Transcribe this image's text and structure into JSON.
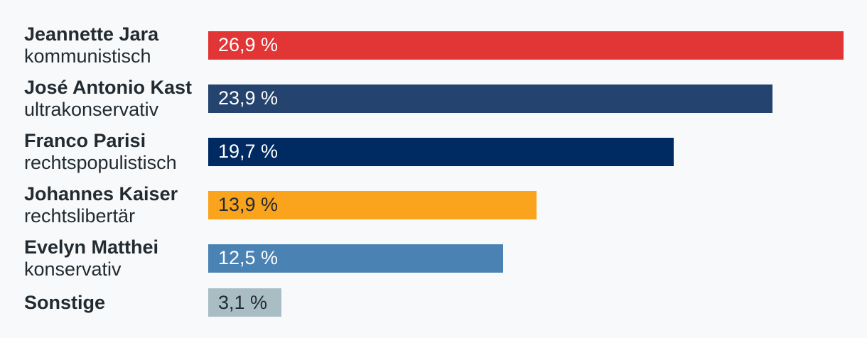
{
  "chart_data": {
    "type": "bar",
    "orientation": "horizontal",
    "unit": "%",
    "value_format": "decimal-comma",
    "xlim": [
      0,
      27
    ],
    "grid": false,
    "legend": "none",
    "categories": [
      "Jeannette Jara",
      "José Antonio Kast",
      "Franco Parisi",
      "Johannes Kaiser",
      "Evelyn Matthei",
      "Sonstige"
    ],
    "values": [
      26.9,
      23.9,
      19.7,
      13.9,
      12.5,
      3.1
    ],
    "items": [
      {
        "name": "Jeannette Jara",
        "description": "kommunistisch",
        "value": 26.9,
        "value_label": "26,9 %",
        "bar_color": "#e23535",
        "value_text_color": "#ffffff"
      },
      {
        "name": "José Antonio Kast",
        "description": "ultrakonservativ",
        "value": 23.9,
        "value_label": "23,9 %",
        "bar_color": "#24436e",
        "value_text_color": "#ffffff"
      },
      {
        "name": "Franco Parisi",
        "description": "rechtspopulistisch",
        "value": 19.7,
        "value_label": "19,7 %",
        "bar_color": "#002a62",
        "value_text_color": "#ffffff"
      },
      {
        "name": "Johannes Kaiser",
        "description": "rechtslibertär",
        "value": 13.9,
        "value_label": "13,9 %",
        "bar_color": "#faa31c",
        "value_text_color": "#222b31"
      },
      {
        "name": "Evelyn Matthei",
        "description": "konservativ",
        "value": 12.5,
        "value_label": "12,5 %",
        "bar_color": "#4a82b4",
        "value_text_color": "#ffffff"
      },
      {
        "name": "Sonstige",
        "description": "",
        "value": 3.1,
        "value_label": "3,1 %",
        "bar_color": "#a9bdc4",
        "value_text_color": "#222b31"
      }
    ],
    "colors": {
      "background": "#f8f9fa",
      "label_text": "#222b31"
    }
  }
}
